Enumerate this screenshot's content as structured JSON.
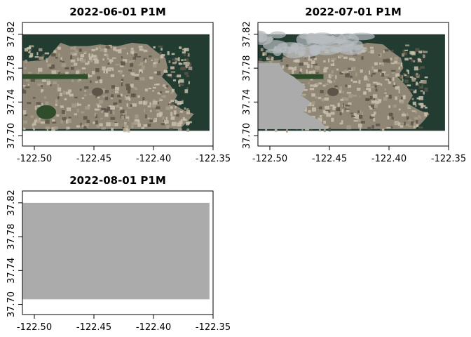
{
  "chart_data": [
    {
      "type": "raster-map",
      "title": "2022-06-01 P1M",
      "x_ticks": [
        "-122.50",
        "-122.45",
        "-122.40",
        "-122.35"
      ],
      "x_tick_values": [
        -122.5,
        -122.45,
        -122.4,
        -122.35
      ],
      "y_ticks": [
        "37.70",
        "37.74",
        "37.78",
        "37.82"
      ],
      "y_tick_values": [
        37.7,
        37.74,
        37.78,
        37.82
      ],
      "xlim": [
        -122.51,
        -122.35
      ],
      "ylim": [
        37.688,
        37.834
      ],
      "raster_extent": {
        "x": [
          -122.51,
          -122.353
        ],
        "y": [
          37.706,
          37.82
        ]
      },
      "content": "satellite-true-color",
      "nodata_fraction": 0.0
    },
    {
      "type": "raster-map",
      "title": "2022-07-01 P1M",
      "x_ticks": [
        "-122.50",
        "-122.45",
        "-122.40",
        "-122.35"
      ],
      "x_tick_values": [
        -122.5,
        -122.45,
        -122.4,
        -122.35
      ],
      "y_ticks": [
        "37.70",
        "37.74",
        "37.78",
        "37.82"
      ],
      "y_tick_values": [
        37.7,
        37.74,
        37.78,
        37.82
      ],
      "xlim": [
        -122.51,
        -122.35
      ],
      "ylim": [
        37.688,
        37.834
      ],
      "raster_extent": {
        "x": [
          -122.51,
          -122.353
        ],
        "y": [
          37.706,
          37.82
        ]
      },
      "content": "satellite-true-color-partial-nodata",
      "nodata_fraction": 0.3
    },
    {
      "type": "raster-map",
      "title": "2022-08-01 P1M",
      "x_ticks": [
        "-122.50",
        "-122.45",
        "-122.40",
        "-122.35"
      ],
      "x_tick_values": [
        -122.5,
        -122.45,
        -122.4,
        -122.35
      ],
      "y_ticks": [
        "37.70",
        "37.74",
        "37.78",
        "37.82"
      ],
      "y_tick_values": [
        37.7,
        37.74,
        37.78,
        37.82
      ],
      "xlim": [
        -122.51,
        -122.35
      ],
      "ylim": [
        37.688,
        37.834
      ],
      "raster_extent": {
        "x": [
          -122.51,
          -122.353
        ],
        "y": [
          37.706,
          37.82
        ]
      },
      "content": "nodata",
      "nodata_fraction": 1.0
    }
  ],
  "colors": {
    "nodata": "#ababab",
    "water": "#223c31",
    "land_light": "#c9bfad",
    "land_mid": "#8f8676",
    "land_dark": "#5c5548",
    "park_green": "#2f4d2a",
    "cloud": "#b6bcc0",
    "frame": "#000000"
  }
}
